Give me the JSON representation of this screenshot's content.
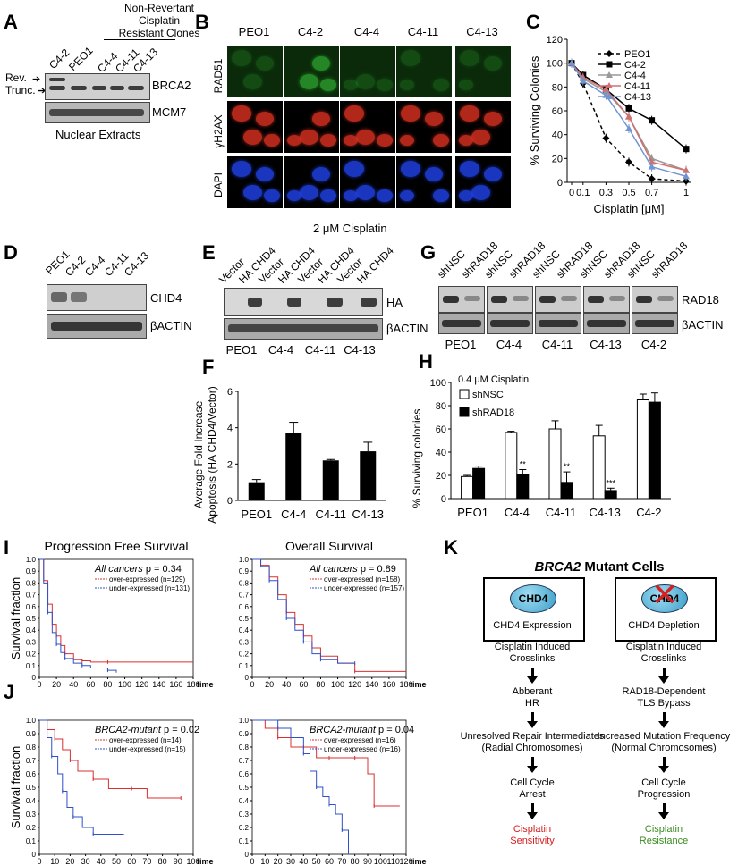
{
  "panels": {
    "A": {
      "label": "A",
      "header": [
        "Non-Revertant",
        "Cisplatin",
        "Resistant Clones"
      ],
      "lanes": [
        "C4-2",
        "PEO1",
        "C4-4",
        "C4-11",
        "C4-13"
      ],
      "side": [
        "Rev.",
        "Trunc."
      ],
      "proteins": [
        "BRCA2",
        "MCM7"
      ],
      "footer": "Nuclear Extracts"
    },
    "B": {
      "label": "B",
      "columns": [
        "PEO1",
        "C4-2",
        "C4-4",
        "C4-11",
        "C4-13"
      ],
      "rows": [
        "RAD51",
        "γH2AX",
        "DAPI"
      ],
      "footer": "2 μM Cisplatin"
    },
    "C": {
      "label": "C"
    },
    "D": {
      "label": "D",
      "lanes": [
        "PEO1",
        "C4-2",
        "C4-4",
        "C4-11",
        "C4-13"
      ],
      "proteins": [
        "CHD4",
        "βACTIN"
      ]
    },
    "E": {
      "label": "E",
      "lanes": [
        "Vector",
        "HA CHD4",
        "Vector",
        "HA CHD4",
        "Vector",
        "HA CHD4",
        "Vector",
        "HA CHD4"
      ],
      "proteins": [
        "HA",
        "βACTIN"
      ],
      "groups": [
        "PEO1",
        "C4-4",
        "C4-11",
        "C4-13"
      ]
    },
    "F": {
      "label": "F"
    },
    "G": {
      "label": "G",
      "lanes": [
        "shNSC",
        "shRAD18",
        "shNSC",
        "shRAD18",
        "shNSC",
        "shRAD18",
        "shNSC",
        "shRAD18",
        "shNSC",
        "shRAD18"
      ],
      "proteins": [
        "RAD18",
        "βACTIN"
      ],
      "groups": [
        "PEO1",
        "C4-4",
        "C4-11",
        "C4-13",
        "C4-2"
      ]
    },
    "H": {
      "label": "H",
      "annot": "0.4 μM Cisplatin",
      "sig": [
        "**",
        "**",
        "***"
      ]
    },
    "I": {
      "label": "I"
    },
    "J": {
      "label": "J"
    },
    "K": {
      "label": "K",
      "title_italic": "BRCA2",
      "title_rest": " Mutant Cells",
      "left": {
        "badge": "CHD4",
        "box": "CHD4 Expression",
        "s1": [
          "Cisplatin Induced",
          "Crosslinks"
        ],
        "s2": [
          "Abberant",
          "HR"
        ],
        "s3": [
          "Unresolved Repair Intermediates",
          "(Radial Chromosomes)"
        ],
        "s4": [
          "Cell Cycle",
          "Arrest"
        ],
        "s5": [
          "Cisplatin",
          "Sensitivity"
        ]
      },
      "right": {
        "badge": "CHD4",
        "box": "CHD4 Depletion",
        "s1": [
          "Cisplatin Induced",
          "Crosslinks"
        ],
        "s2": [
          "RAD18-Dependent",
          "TLS Bypass"
        ],
        "s3": [
          "Increased Mutation Frequency",
          "(Normal Chromosomes)"
        ],
        "s4": [
          "Cell Cycle",
          "Progression"
        ],
        "s5": [
          "Cisplatin",
          "Resistance"
        ]
      },
      "colors": {
        "sens": "#d42020",
        "resist": "#3a8a20",
        "badge": "#3a9ec8"
      }
    }
  },
  "chart_data": [
    {
      "id": "C",
      "type": "line",
      "xlabel": "Cisplatin [μM]",
      "ylabel": "% Surviving Colonies",
      "x": [
        0,
        0.1,
        0.3,
        0.5,
        0.7,
        1
      ],
      "xticks": [
        "0",
        "0.1",
        "0.3",
        "0.5",
        "0.7",
        "1"
      ],
      "ylim": [
        0,
        120
      ],
      "yticks": [
        0,
        20,
        40,
        60,
        80,
        100,
        120
      ],
      "series": [
        {
          "name": "PEO1",
          "color": "#000000",
          "dash": true,
          "marker": "diamond",
          "values": [
            100,
            83,
            37,
            17,
            3,
            1
          ]
        },
        {
          "name": "C4-2",
          "color": "#000000",
          "dash": false,
          "marker": "square",
          "values": [
            100,
            90,
            78,
            62,
            52,
            28
          ]
        },
        {
          "name": "C4-4",
          "color": "#999999",
          "dash": false,
          "marker": "triangle",
          "values": [
            100,
            87,
            76,
            55,
            20,
            10
          ]
        },
        {
          "name": "C4-11",
          "color": "#d07070",
          "dash": false,
          "marker": "triangle",
          "values": [
            100,
            88,
            78,
            55,
            17,
            10
          ]
        },
        {
          "name": "C4-13",
          "color": "#7095d0",
          "dash": false,
          "marker": "triangle",
          "values": [
            100,
            85,
            73,
            45,
            13,
            5
          ]
        }
      ]
    },
    {
      "id": "F",
      "type": "bar",
      "ylabel": [
        "Average Fold Increase",
        "Apoptosis (HA CHD4/Vector)"
      ],
      "categories": [
        "PEO1",
        "C4-4",
        "C4-11",
        "C4-13"
      ],
      "values": [
        1.0,
        3.7,
        2.2,
        2.7
      ],
      "errors": [
        0.15,
        0.6,
        0.05,
        0.5
      ],
      "ylim": [
        0,
        6
      ],
      "yticks": [
        0,
        2,
        4,
        6
      ]
    },
    {
      "id": "H",
      "type": "bar",
      "ylabel": "% Surviving colonies",
      "categories": [
        "PEO1",
        "C4-4",
        "C4-11",
        "C4-13",
        "C4-2"
      ],
      "series": [
        {
          "name": "shNSC",
          "color": "#ffffff",
          "values": [
            19,
            57,
            60,
            54,
            85
          ],
          "errors": [
            1,
            1,
            7,
            9,
            5
          ]
        },
        {
          "name": "shRAD18",
          "color": "#000000",
          "values": [
            26,
            21,
            14,
            7,
            83
          ],
          "errors": [
            2,
            4,
            9,
            2,
            8
          ]
        }
      ],
      "ylim": [
        0,
        100
      ],
      "yticks": [
        0,
        20,
        40,
        60,
        80,
        100
      ]
    },
    {
      "id": "I-left",
      "type": "line",
      "title": "Progression Free Survival",
      "ylabel": "Survival fraction",
      "xunit": "time",
      "annot": "All cancers p = 0.34",
      "legend": [
        "over-expressed (n=129)",
        "under-expressed (n=131)"
      ],
      "xlim": [
        0,
        180
      ],
      "ylim": [
        0,
        1
      ],
      "xticks": [
        "0",
        "20",
        "40",
        "60",
        "80",
        "100",
        "120",
        "140",
        "160",
        "180"
      ],
      "yticks": [
        "0",
        "0.1",
        "0.2",
        "0.3",
        "0.4",
        "0.5",
        "0.6",
        "0.7",
        "0.8",
        "0.9",
        "1.0"
      ],
      "series": [
        {
          "name": "over-expressed",
          "color": "#d83030",
          "x": [
            0,
            5,
            10,
            15,
            20,
            25,
            30,
            40,
            50,
            60,
            80,
            180
          ],
          "values": [
            1,
            0.82,
            0.62,
            0.45,
            0.35,
            0.27,
            0.2,
            0.15,
            0.14,
            0.13,
            0.13,
            0.13
          ]
        },
        {
          "name": "under-expressed",
          "color": "#3050c8",
          "x": [
            0,
            5,
            10,
            15,
            20,
            25,
            30,
            40,
            50,
            60,
            80,
            90
          ],
          "values": [
            1,
            0.8,
            0.55,
            0.38,
            0.28,
            0.21,
            0.16,
            0.12,
            0.1,
            0.08,
            0.06,
            0.04
          ]
        }
      ]
    },
    {
      "id": "I-right",
      "type": "line",
      "title": "Overall Survival",
      "xunit": "time",
      "annot": "All cancers p = 0.89",
      "legend": [
        "over-expressed (n=158)",
        "under-expressed (n=157)"
      ],
      "xlim": [
        0,
        180
      ],
      "ylim": [
        0,
        1
      ],
      "xticks": [
        "0",
        "20",
        "40",
        "60",
        "80",
        "100",
        "120",
        "140",
        "160",
        "180"
      ],
      "yticks": [
        "0",
        "0.1",
        "0.2",
        "0.3",
        "0.4",
        "0.5",
        "0.6",
        "0.7",
        "0.8",
        "0.9",
        "1.0"
      ],
      "series": [
        {
          "name": "over-expressed",
          "color": "#d83030",
          "x": [
            0,
            10,
            20,
            30,
            40,
            50,
            60,
            70,
            80,
            100,
            120,
            180
          ],
          "values": [
            1,
            0.95,
            0.85,
            0.7,
            0.55,
            0.45,
            0.35,
            0.25,
            0.18,
            0.12,
            0.05,
            0.05
          ]
        },
        {
          "name": "under-expressed",
          "color": "#3050c8",
          "x": [
            0,
            10,
            20,
            30,
            40,
            50,
            60,
            70,
            80,
            100,
            120
          ],
          "values": [
            1,
            0.94,
            0.82,
            0.66,
            0.5,
            0.4,
            0.3,
            0.2,
            0.15,
            0.12,
            0.12
          ]
        }
      ]
    },
    {
      "id": "J-left",
      "type": "line",
      "ylabel": "Survival fraction",
      "xunit": "time",
      "annot": "BRCA2-mutant p = 0.02",
      "legend": [
        "over-expressed (n=14)",
        "under-expressed (n=15)"
      ],
      "xlim": [
        0,
        100
      ],
      "ylim": [
        0,
        1
      ],
      "xticks": [
        "0",
        "10",
        "20",
        "30",
        "40",
        "50",
        "60",
        "70",
        "80",
        "90",
        "100"
      ],
      "yticks": [
        "0",
        "0.1",
        "0.2",
        "0.3",
        "0.4",
        "0.5",
        "0.6",
        "0.7",
        "0.8",
        "0.9",
        "1.0"
      ],
      "series": [
        {
          "name": "over-expressed",
          "color": "#d83030",
          "x": [
            0,
            5,
            10,
            15,
            20,
            25,
            35,
            45,
            60,
            70,
            92
          ],
          "values": [
            1,
            0.93,
            0.86,
            0.78,
            0.7,
            0.62,
            0.56,
            0.49,
            0.49,
            0.42,
            0.42
          ]
        },
        {
          "name": "under-expressed",
          "color": "#3050c8",
          "x": [
            0,
            5,
            8,
            12,
            15,
            18,
            22,
            28,
            35,
            55
          ],
          "values": [
            1,
            0.87,
            0.73,
            0.6,
            0.47,
            0.35,
            0.28,
            0.2,
            0.15,
            0.15
          ]
        }
      ]
    },
    {
      "id": "J-right",
      "type": "line",
      "xunit": "time",
      "annot": "BRCA2-mutant p = 0.04",
      "legend": [
        "over-expressed (n=16)",
        "under-expressed (n=16)"
      ],
      "xlim": [
        0,
        120
      ],
      "ylim": [
        0,
        1
      ],
      "xticks": [
        "0",
        "10",
        "20",
        "30",
        "40",
        "50",
        "60",
        "70",
        "80",
        "90",
        "100",
        "110",
        "120"
      ],
      "yticks": [
        "0",
        "0.1",
        "0.2",
        "0.3",
        "0.4",
        "0.5",
        "0.6",
        "0.7",
        "0.8",
        "0.9",
        "1.0"
      ],
      "series": [
        {
          "name": "over-expressed",
          "color": "#d83030",
          "x": [
            0,
            10,
            20,
            30,
            40,
            50,
            60,
            70,
            80,
            90,
            95,
            115
          ],
          "values": [
            1,
            0.94,
            0.87,
            0.8,
            0.8,
            0.72,
            0.72,
            0.72,
            0.72,
            0.6,
            0.36,
            0.36
          ]
        },
        {
          "name": "under-expressed",
          "color": "#3050c8",
          "x": [
            0,
            10,
            20,
            30,
            40,
            45,
            50,
            55,
            60,
            65,
            70,
            75
          ],
          "values": [
            1,
            1,
            0.94,
            0.87,
            0.75,
            0.62,
            0.5,
            0.43,
            0.37,
            0.3,
            0.18,
            0
          ]
        }
      ]
    }
  ]
}
